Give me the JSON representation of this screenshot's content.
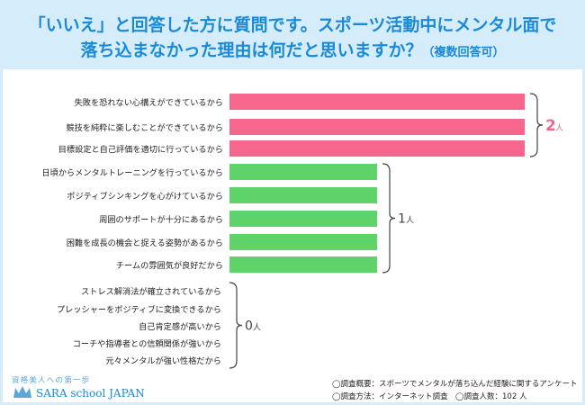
{
  "header": {
    "title_line1": "「いいえ」と回答した方に質問です。スポーツ活動中にメンタル面で",
    "title_line2_main": "落ち込まなかった理由は何だと思いますか？",
    "title_line2_sub": "（複数回答可）"
  },
  "chart_data": {
    "type": "bar",
    "orientation": "horizontal",
    "title": "「いいえ」と回答した方に質問です。スポーツ活動中にメンタル面で落ち込まなかった理由は何だと思いますか？（複数回答可）",
    "unit": "人",
    "categories": [
      "失敗を恐れない心構えができているから",
      "競技を純粋に楽しむことができているから",
      "目標設定と自己評価を適切に行っているから",
      "日頃からメンタルトレーニングを行っているから",
      "ポジティブシンキングを心がけているから",
      "周囲のサポートが十分にあるから",
      "困難を成長の機会と捉える姿勢があるから",
      "チームの雰囲気が良好だから",
      "ストレス解消法が確立されているから",
      "プレッシャーをポジティブに変換できるから",
      "自己肯定感が高いから",
      "コーチや指導者との信頼関係が強いから",
      "元々メンタルが強い性格だから"
    ],
    "values": [
      2,
      2,
      2,
      1,
      1,
      1,
      1,
      1,
      0,
      0,
      0,
      0,
      0
    ],
    "bar_colors": [
      "#f7678d",
      "#f7678d",
      "#f7678d",
      "#5ed36a",
      "#5ed36a",
      "#5ed36a",
      "#5ed36a",
      "#5ed36a",
      "#5ed36a",
      "#5ed36a",
      "#5ed36a",
      "#5ed36a",
      "#5ed36a"
    ],
    "groups": [
      {
        "value": "2",
        "unit": "人",
        "color": "#f06690",
        "first": 0,
        "last": 2
      },
      {
        "value": "1",
        "unit": "人",
        "color": "#444444",
        "first": 3,
        "last": 7
      },
      {
        "value": "0",
        "unit": "人",
        "color": "#444444",
        "first": 8,
        "last": 12
      }
    ],
    "xlim": [
      0,
      2
    ]
  },
  "footer": {
    "logo_tagline": "資格美人への第一歩",
    "logo_name": "SARA school JAPAN",
    "note_summary": "◯調査概要：スポーツでメンタルが落ち込んだ経験に関するアンケート",
    "note_method": "◯調査方法：インターネット調査　◯調査人数：102 人"
  },
  "colors": {
    "header_bg": "#d5ecfa",
    "title": "#1b8ad6",
    "bar_pink": "#f7678d",
    "bar_green": "#5ed36a"
  }
}
